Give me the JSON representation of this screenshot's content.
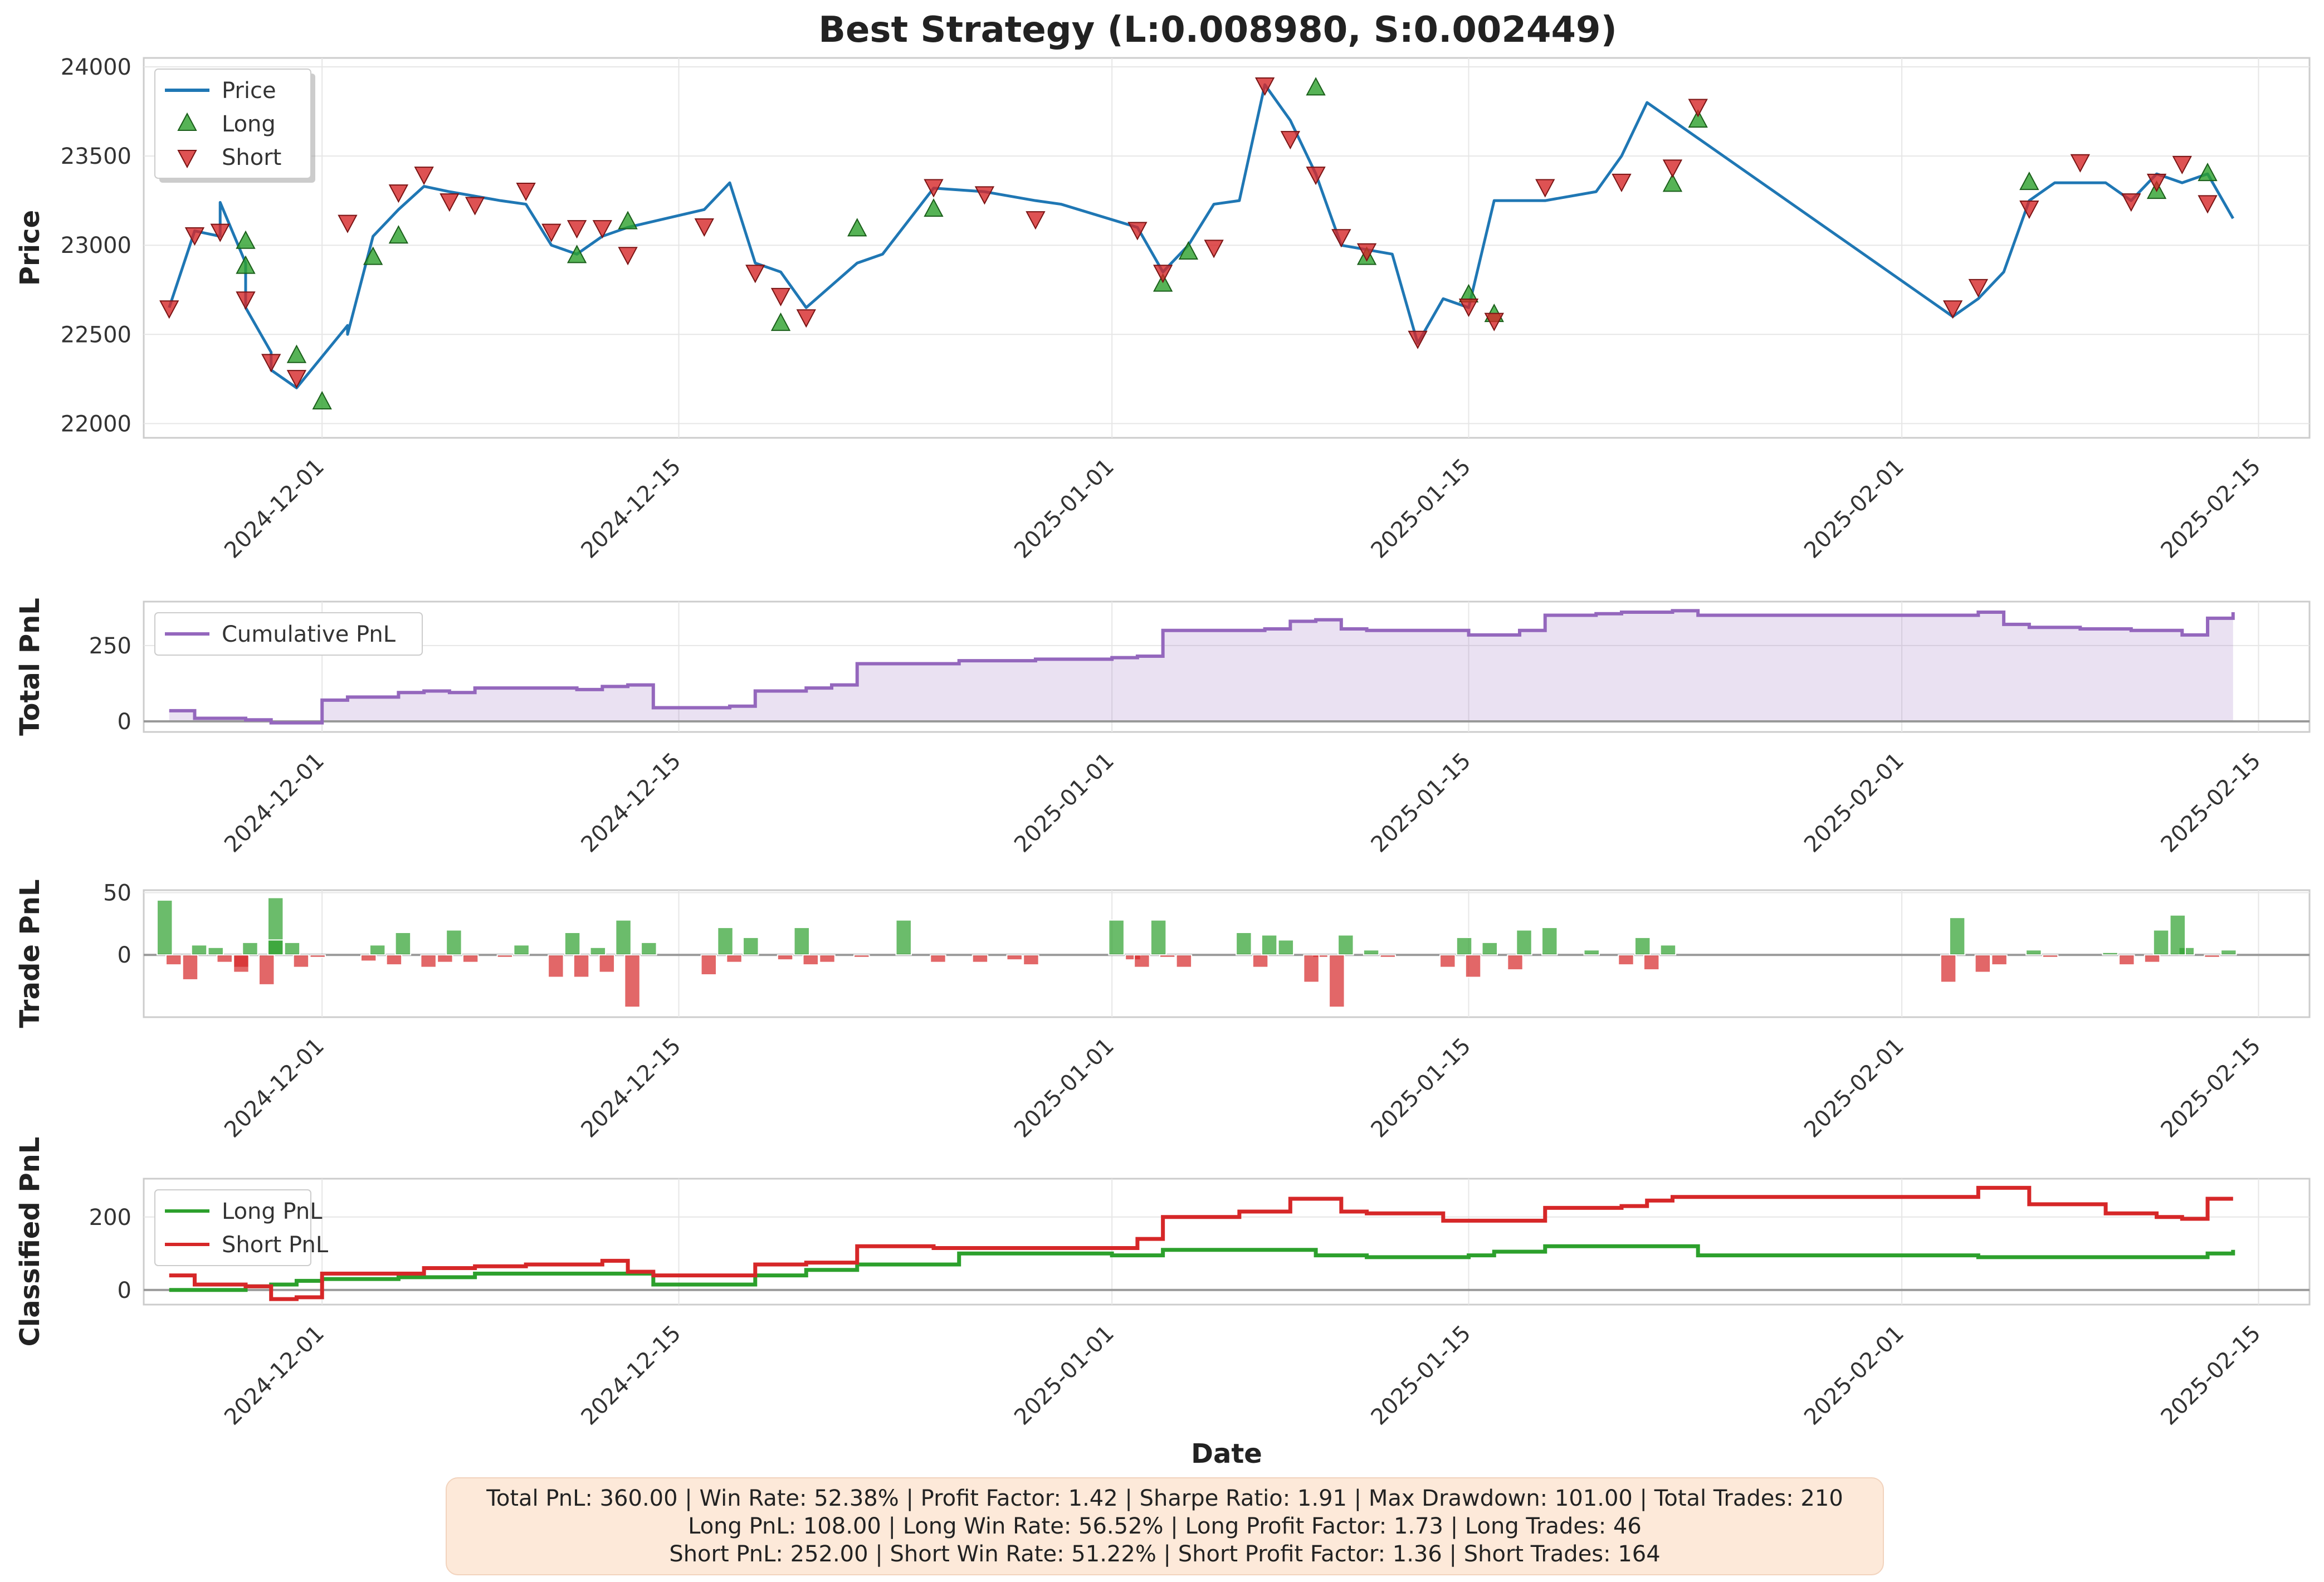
{
  "title": "Best Strategy (L:0.008980, S:0.002449)",
  "stats": {
    "line1": "Total PnL: 360.00 | Win Rate: 52.38% | Profit Factor: 1.42 | Sharpe Ratio: 1.91 | Max Drawdown: 101.00 | Total Trades: 210",
    "line2": "Long PnL: 108.00 | Long Win Rate: 56.52% | Long Profit Factor: 1.73 | Long Trades: 46",
    "line3": "Short PnL: 252.00 | Short Win Rate: 51.22% | Short Profit Factor: 1.36 | Short Trades: 164"
  },
  "colors": {
    "price": "#1f77b4",
    "long": "#2ca02c",
    "short": "#d62728",
    "cumulative": "#9467bd",
    "grid": "#e6e6e6",
    "zero": "#999999"
  },
  "chart_data": [
    {
      "type": "line",
      "ylabel": "Price",
      "ylim": [
        21920,
        24050
      ],
      "yticks": [
        22000,
        22500,
        23000,
        23500,
        24000
      ],
      "xlim": [
        "2024-11-24",
        "2025-02-17"
      ],
      "xticks": [
        "2024-12-01",
        "2024-12-15",
        "2025-01-01",
        "2025-01-15",
        "2025-02-01",
        "2025-02-15"
      ],
      "legend": "top-left",
      "grid": true,
      "series": [
        {
          "name": "Price",
          "type": "line",
          "x": [
            "2024-11-25",
            "2024-11-26",
            "2024-11-27",
            "2024-11-27",
            "2024-11-28",
            "2024-11-28",
            "2024-11-29",
            "2024-11-29",
            "2024-11-30",
            "2024-12-02",
            "2024-12-02",
            "2024-12-03",
            "2024-12-04",
            "2024-12-05",
            "2024-12-06",
            "2024-12-08",
            "2024-12-09",
            "2024-12-10",
            "2024-12-11",
            "2024-12-12",
            "2024-12-13",
            "2024-12-16",
            "2024-12-17",
            "2024-12-18",
            "2024-12-19",
            "2024-12-20",
            "2024-12-22",
            "2024-12-23",
            "2024-12-25",
            "2024-12-27",
            "2024-12-29",
            "2024-12-30",
            "2025-01-02",
            "2025-01-03",
            "2025-01-04",
            "2025-01-05",
            "2025-01-06",
            "2025-01-07",
            "2025-01-08",
            "2025-01-09",
            "2025-01-10",
            "2025-01-12",
            "2025-01-13",
            "2025-01-14",
            "2025-01-15",
            "2025-01-16",
            "2025-01-17",
            "2025-01-18",
            "2025-01-20",
            "2025-01-21",
            "2025-01-22",
            "2025-02-03",
            "2025-02-04",
            "2025-02-05",
            "2025-02-06",
            "2025-02-07",
            "2025-02-09",
            "2025-02-10",
            "2025-02-11",
            "2025-02-12",
            "2025-02-13",
            "2025-02-14"
          ],
          "y": [
            22650,
            23080,
            23050,
            23240,
            22900,
            22650,
            22400,
            22300,
            22200,
            22550,
            22500,
            23050,
            23200,
            23330,
            23300,
            23250,
            23230,
            23000,
            22950,
            23050,
            23100,
            23200,
            23350,
            22900,
            22850,
            22650,
            22900,
            22950,
            23320,
            23300,
            23250,
            23230,
            23100,
            22850,
            23000,
            23230,
            23250,
            23900,
            23700,
            23400,
            23000,
            22950,
            22450,
            22700,
            22650,
            23250,
            23250,
            23250,
            23300,
            23500,
            23800,
            22600,
            22700,
            22850,
            23250,
            23350,
            23350,
            23250,
            23400,
            23350,
            23400,
            23150
          ]
        },
        {
          "name": "Long",
          "type": "scatter",
          "marker": "triangle-up",
          "x": [
            "2024-11-28",
            "2024-11-28",
            "2024-11-30",
            "2024-12-01",
            "2024-12-03",
            "2024-12-04",
            "2024-12-11",
            "2024-12-13",
            "2024-12-19",
            "2024-12-22",
            "2024-12-25",
            "2025-01-03",
            "2025-01-04",
            "2025-01-09",
            "2025-01-11",
            "2025-01-15",
            "2025-01-16",
            "2025-01-23",
            "2025-01-24",
            "2025-02-06",
            "2025-02-11",
            "2025-02-13"
          ],
          "y": [
            23020,
            22880,
            22380,
            22120,
            22930,
            23050,
            22940,
            23130,
            22560,
            23090,
            23200,
            22780,
            22960,
            23880,
            22930,
            22720,
            22610,
            23340,
            23700,
            23350,
            23300,
            23400
          ]
        },
        {
          "name": "Short",
          "type": "scatter",
          "marker": "triangle-down",
          "x": [
            "2024-11-25",
            "2024-11-26",
            "2024-11-27",
            "2024-11-28",
            "2024-11-29",
            "2024-11-30",
            "2024-12-02",
            "2024-12-04",
            "2024-12-05",
            "2024-12-06",
            "2024-12-07",
            "2024-12-09",
            "2024-12-10",
            "2024-12-11",
            "2024-12-12",
            "2024-12-13",
            "2024-12-16",
            "2024-12-18",
            "2024-12-19",
            "2024-12-20",
            "2024-12-25",
            "2024-12-27",
            "2024-12-29",
            "2025-01-02",
            "2025-01-03",
            "2025-01-05",
            "2025-01-07",
            "2025-01-08",
            "2025-01-09",
            "2025-01-10",
            "2025-01-11",
            "2025-01-13",
            "2025-01-15",
            "2025-01-16",
            "2025-01-18",
            "2025-01-21",
            "2025-01-23",
            "2025-01-24",
            "2025-02-03",
            "2025-02-04",
            "2025-02-06",
            "2025-02-08",
            "2025-02-10",
            "2025-02-11",
            "2025-02-12",
            "2025-02-13"
          ],
          "y": [
            22650,
            23060,
            23080,
            22700,
            22350,
            22260,
            23130,
            23300,
            23400,
            23250,
            23230,
            23310,
            23080,
            23100,
            23100,
            22950,
            23110,
            22850,
            22720,
            22600,
            23330,
            23290,
            23150,
            23090,
            22850,
            22990,
            23900,
            23600,
            23400,
            23050,
            22970,
            22480,
            22660,
            22580,
            23330,
            23360,
            23440,
            23780,
            22650,
            22770,
            23210,
            23470,
            23250,
            23360,
            23460,
            23240
          ]
        }
      ]
    },
    {
      "type": "area",
      "ylabel": "Total PnL",
      "ylim": [
        -35,
        395
      ],
      "yticks": [
        0,
        250
      ],
      "legend": "top-left",
      "grid": true,
      "series": [
        {
          "name": "Cumulative PnL",
          "x": [
            "2024-11-25",
            "2024-11-26",
            "2024-11-27",
            "2024-11-28",
            "2024-11-29",
            "2024-11-30",
            "2024-12-01",
            "2024-12-02",
            "2024-12-03",
            "2024-12-04",
            "2024-12-05",
            "2024-12-06",
            "2024-12-07",
            "2024-12-08",
            "2024-12-10",
            "2024-12-11",
            "2024-12-12",
            "2024-12-13",
            "2024-12-14",
            "2024-12-16",
            "2024-12-17",
            "2024-12-18",
            "2024-12-20",
            "2024-12-21",
            "2024-12-22",
            "2024-12-26",
            "2024-12-29",
            "2025-01-01",
            "2025-01-02",
            "2025-01-03",
            "2025-01-05",
            "2025-01-07",
            "2025-01-08",
            "2025-01-09",
            "2025-01-10",
            "2025-01-11",
            "2025-01-12",
            "2025-01-14",
            "2025-01-15",
            "2025-01-17",
            "2025-01-18",
            "2025-01-20",
            "2025-01-21",
            "2025-01-23",
            "2025-01-24",
            "2025-02-03",
            "2025-02-04",
            "2025-02-05",
            "2025-02-06",
            "2025-02-08",
            "2025-02-10",
            "2025-02-11",
            "2025-02-12",
            "2025-02-13",
            "2025-02-14"
          ],
          "y": [
            35,
            10,
            10,
            5,
            -5,
            -5,
            70,
            80,
            80,
            95,
            100,
            95,
            110,
            110,
            110,
            105,
            115,
            120,
            45,
            45,
            50,
            100,
            110,
            120,
            190,
            200,
            205,
            210,
            215,
            300,
            300,
            305,
            330,
            335,
            305,
            300,
            300,
            300,
            285,
            300,
            350,
            355,
            360,
            365,
            350,
            350,
            360,
            320,
            310,
            305,
            300,
            300,
            285,
            340,
            360
          ]
        }
      ]
    },
    {
      "type": "bar",
      "ylabel": "Trade PnL",
      "ylim": [
        -50,
        52
      ],
      "yticks": [
        0,
        50
      ],
      "grid": true,
      "series": [
        {
          "name": "",
          "x": [
            "2024-11-25",
            "2024-11-25",
            "2024-11-26",
            "2024-11-26",
            "2024-11-27",
            "2024-11-27",
            "2024-11-28",
            "2024-11-28",
            "2024-11-28",
            "2024-11-29",
            "2024-11-29",
            "2024-11-29",
            "2024-11-30",
            "2024-11-30",
            "2024-12-01",
            "2024-12-03",
            "2024-12-03",
            "2024-12-04",
            "2024-12-04",
            "2024-12-05",
            "2024-12-06",
            "2024-12-06",
            "2024-12-07",
            "2024-12-08",
            "2024-12-09",
            "2024-12-10",
            "2024-12-11",
            "2024-12-11",
            "2024-12-12",
            "2024-12-12",
            "2024-12-13",
            "2024-12-13",
            "2024-12-14",
            "2024-12-16",
            "2024-12-17",
            "2024-12-17",
            "2024-12-18",
            "2024-12-19",
            "2024-12-20",
            "2024-12-20",
            "2024-12-21",
            "2024-12-22",
            "2024-12-24",
            "2024-12-25",
            "2024-12-27",
            "2024-12-28",
            "2024-12-29",
            "2025-01-01",
            "2025-01-02",
            "2025-01-02",
            "2025-01-03",
            "2025-01-03",
            "2025-01-04",
            "2025-01-06",
            "2025-01-07",
            "2025-01-07",
            "2025-01-08",
            "2025-01-09",
            "2025-01-09",
            "2025-01-10",
            "2025-01-10",
            "2025-01-11",
            "2025-01-12",
            "2025-01-14",
            "2025-01-15",
            "2025-01-15",
            "2025-01-16",
            "2025-01-17",
            "2025-01-17",
            "2025-01-18",
            "2025-01-20",
            "2025-01-21",
            "2025-01-22",
            "2025-01-22",
            "2025-01-23",
            "2025-02-03",
            "2025-02-03",
            "2025-02-04",
            "2025-02-05",
            "2025-02-06",
            "2025-02-07",
            "2025-02-09",
            "2025-02-10",
            "2025-02-11",
            "2025-02-11",
            "2025-02-12",
            "2025-02-12",
            "2025-02-13",
            "2025-02-14"
          ],
          "values": [
            44,
            -8,
            -20,
            8,
            6,
            -6,
            -10,
            10,
            -14,
            46,
            -24,
            12,
            10,
            -10,
            -2,
            8,
            -5,
            18,
            -8,
            -10,
            -6,
            20,
            -6,
            -2,
            8,
            -18,
            18,
            -18,
            6,
            -14,
            28,
            -42,
            10,
            -16,
            22,
            -6,
            14,
            -4,
            22,
            -8,
            -6,
            -2,
            28,
            -6,
            -6,
            -4,
            -8,
            28,
            -4,
            -10,
            28,
            -2,
            -10,
            18,
            -10,
            16,
            12,
            -2,
            -22,
            16,
            -42,
            4,
            -2,
            -10,
            14,
            -18,
            10,
            20,
            -12,
            22,
            4,
            -8,
            14,
            -12,
            8,
            30,
            -22,
            -14,
            -8,
            4,
            -2,
            2,
            -8,
            20,
            -6,
            6,
            32,
            -2,
            4
          ]
        }
      ]
    },
    {
      "type": "line",
      "ylabel": "Classified PnL",
      "xlabel": "Date",
      "ylim": [
        -40,
        305
      ],
      "yticks": [
        0,
        200
      ],
      "legend": "top-left",
      "grid": true,
      "series": [
        {
          "name": "Long PnL",
          "x": [
            "2024-11-25",
            "2024-11-28",
            "2024-11-29",
            "2024-11-30",
            "2024-12-01",
            "2024-12-04",
            "2024-12-07",
            "2024-12-12",
            "2024-12-14",
            "2024-12-18",
            "2024-12-20",
            "2024-12-22",
            "2024-12-26",
            "2025-01-01",
            "2025-01-03",
            "2025-01-07",
            "2025-01-09",
            "2025-01-11",
            "2025-01-15",
            "2025-01-16",
            "2025-01-18",
            "2025-01-20",
            "2025-01-24",
            "2025-02-03",
            "2025-02-04",
            "2025-02-07",
            "2025-02-12",
            "2025-02-13",
            "2025-02-14"
          ],
          "y": [
            0,
            10,
            15,
            25,
            30,
            35,
            45,
            45,
            15,
            40,
            55,
            70,
            100,
            95,
            110,
            110,
            95,
            90,
            95,
            105,
            120,
            120,
            95,
            95,
            90,
            90,
            90,
            100,
            110
          ]
        },
        {
          "name": "Short PnL",
          "x": [
            "2024-11-25",
            "2024-11-26",
            "2024-11-27",
            "2024-11-28",
            "2024-11-29",
            "2024-11-30",
            "2024-12-01",
            "2024-12-03",
            "2024-12-05",
            "2024-12-07",
            "2024-12-09",
            "2024-12-12",
            "2024-12-13",
            "2024-12-14",
            "2024-12-17",
            "2024-12-18",
            "2024-12-20",
            "2024-12-22",
            "2024-12-25",
            "2024-12-28",
            "2025-01-01",
            "2025-01-02",
            "2025-01-03",
            "2025-01-06",
            "2025-01-08",
            "2025-01-10",
            "2025-01-11",
            "2025-01-13",
            "2025-01-14",
            "2025-01-16",
            "2025-01-18",
            "2025-01-21",
            "2025-01-22",
            "2025-01-23",
            "2025-02-03",
            "2025-02-04",
            "2025-02-06",
            "2025-02-09",
            "2025-02-11",
            "2025-02-12",
            "2025-02-13",
            "2025-02-14"
          ],
          "y": [
            40,
            15,
            15,
            10,
            -25,
            -20,
            45,
            45,
            60,
            65,
            70,
            80,
            50,
            40,
            40,
            70,
            75,
            120,
            115,
            115,
            115,
            140,
            200,
            215,
            250,
            215,
            210,
            210,
            190,
            190,
            225,
            230,
            245,
            255,
            255,
            280,
            235,
            210,
            200,
            195,
            250,
            250
          ]
        }
      ]
    }
  ]
}
